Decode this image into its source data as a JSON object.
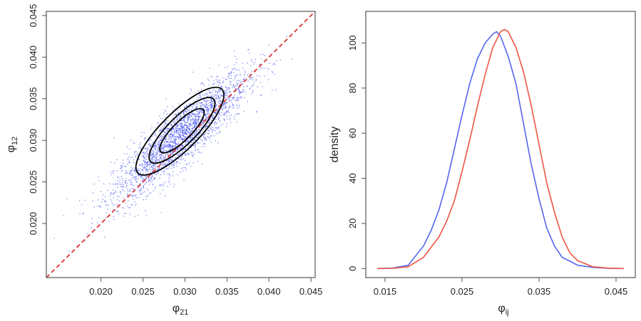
{
  "chart_data": [
    {
      "type": "scatter",
      "panel": "left",
      "xlabel": "φ",
      "xlabel_sub": "21",
      "ylabel": "φ",
      "ylabel_sub": "12",
      "xlim": [
        0.0135,
        0.0455
      ],
      "ylim": [
        0.0135,
        0.0455
      ],
      "xticks": [
        {
          "value": 0.02,
          "label": "0.020"
        },
        {
          "value": 0.025,
          "label": "0.025"
        },
        {
          "value": 0.03,
          "label": "0.030"
        },
        {
          "value": 0.035,
          "label": "0.035"
        },
        {
          "value": 0.04,
          "label": "0.040"
        },
        {
          "value": 0.045,
          "label": "0.045"
        }
      ],
      "yticks": [
        {
          "value": 0.02,
          "label": "0.020"
        },
        {
          "value": 0.025,
          "label": "0.025"
        },
        {
          "value": 0.03,
          "label": "0.030"
        },
        {
          "value": 0.035,
          "label": "0.035"
        },
        {
          "value": 0.04,
          "label": "0.040"
        },
        {
          "value": 0.045,
          "label": "0.045"
        }
      ],
      "points": {
        "color": "#3344ee",
        "count": 2600,
        "center": [
          0.0295,
          0.0305
        ],
        "sd": [
          0.004,
          0.0038
        ],
        "correlation": 0.88
      },
      "contours": {
        "color": "#000000",
        "center": [
          0.0295,
          0.031
        ],
        "ellipses": [
          {
            "x_extent": [
              0.0238,
              0.035
            ],
            "y_extent": [
              0.0258,
              0.0364
            ]
          },
          {
            "x_extent": [
              0.0255,
              0.0338
            ],
            "y_extent": [
              0.0272,
              0.0352
            ]
          },
          {
            "x_extent": [
              0.0268,
              0.0325
            ],
            "y_extent": [
              0.0285,
              0.0338
            ]
          }
        ]
      },
      "reference_line": {
        "color": "#dd4444",
        "style": "dashed",
        "from": [
          0.0135,
          0.0135
        ],
        "to": [
          0.0455,
          0.0455
        ]
      }
    },
    {
      "type": "line",
      "panel": "right",
      "xlabel": "φ",
      "xlabel_sub": "ij",
      "ylabel": "density",
      "xlim": [
        0.0125,
        0.0475
      ],
      "ylim": [
        -4,
        114
      ],
      "xticks": [
        {
          "value": 0.015,
          "label": "0.015"
        },
        {
          "value": 0.025,
          "label": "0.025"
        },
        {
          "value": 0.035,
          "label": "0.035"
        },
        {
          "value": 0.045,
          "label": "0.045"
        }
      ],
      "yticks": [
        {
          "value": 0,
          "label": "0"
        },
        {
          "value": 20,
          "label": "20"
        },
        {
          "value": 40,
          "label": "40"
        },
        {
          "value": 60,
          "label": "60"
        },
        {
          "value": 80,
          "label": "80"
        },
        {
          "value": 100,
          "label": "100"
        }
      ],
      "series": [
        {
          "color": "#5566ee",
          "x": [
            0.014,
            0.016,
            0.018,
            0.02,
            0.021,
            0.022,
            0.023,
            0.024,
            0.025,
            0.026,
            0.027,
            0.028,
            0.029,
            0.0295,
            0.03,
            0.031,
            0.032,
            0.033,
            0.034,
            0.035,
            0.036,
            0.037,
            0.038,
            0.04,
            0.042,
            0.044,
            0.046
          ],
          "y": [
            0,
            0.2,
            1.5,
            10,
            17,
            26,
            38,
            53,
            68,
            82,
            93,
            100,
            104,
            105,
            103,
            94,
            82,
            64,
            46,
            31,
            18,
            10,
            5,
            1.5,
            0.5,
            0.1,
            0
          ]
        },
        {
          "color": "#ee5544",
          "x": [
            0.014,
            0.016,
            0.018,
            0.02,
            0.022,
            0.023,
            0.024,
            0.025,
            0.026,
            0.027,
            0.028,
            0.029,
            0.03,
            0.0305,
            0.031,
            0.032,
            0.033,
            0.034,
            0.035,
            0.036,
            0.037,
            0.038,
            0.039,
            0.04,
            0.042,
            0.044,
            0.046
          ],
          "y": [
            0,
            0.1,
            0.8,
            5,
            14,
            21,
            30,
            43,
            57,
            72,
            86,
            98,
            105,
            106,
            105,
            98,
            87,
            72,
            55,
            38,
            25,
            14,
            7,
            3.5,
            0.8,
            0.2,
            0
          ]
        }
      ]
    }
  ]
}
